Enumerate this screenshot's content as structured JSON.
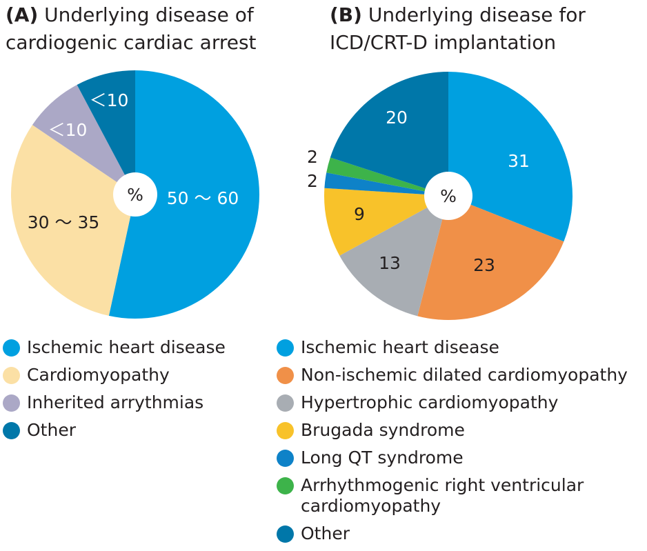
{
  "chart_data": [
    {
      "type": "pie",
      "panel": "(A)",
      "title": "Underlying disease of\ncardiogenic cardiac arrest",
      "center_label": "%",
      "slices": [
        {
          "name": "Ischemic heart disease",
          "label": "50 ～ 60",
          "value": 55,
          "color": "#00a0e0",
          "text_color": "#ffffff"
        },
        {
          "name": "Cardiomyopathy",
          "label": "30 ～ 35",
          "value": 32,
          "color": "#fbe0a5",
          "text_color": "#231f20"
        },
        {
          "name": "Inherited arrythmias",
          "label": "＜10",
          "value": 8,
          "color": "#aba8c6",
          "text_color": "#ffffff"
        },
        {
          "name": "Other",
          "label": "＜10",
          "value": 8,
          "color": "#0077a9",
          "text_color": "#ffffff"
        }
      ]
    },
    {
      "type": "pie",
      "panel": "(B)",
      "title": "Underlying disease for\nICD/CRT-D implantation",
      "center_label": "%",
      "slices": [
        {
          "name": "Ischemic heart disease",
          "label": "31",
          "value": 31,
          "color": "#00a0e0",
          "text_color": "#ffffff"
        },
        {
          "name": "Non-ischemic dilated cardiomyopathy",
          "label": "23",
          "value": 23,
          "color": "#f09048",
          "text_color": "#231f20"
        },
        {
          "name": "Hypertrophic cardiomyopathy",
          "label": "13",
          "value": 13,
          "color": "#a8adb3",
          "text_color": "#231f20"
        },
        {
          "name": "Brugada syndrome",
          "label": "9",
          "value": 9,
          "color": "#f8c22a",
          "text_color": "#231f20"
        },
        {
          "name": "Long QT syndrome",
          "label": "2",
          "value": 2,
          "color": "#0e82c8",
          "text_color": "#231f20"
        },
        {
          "name": "Arrhythmogenic right ventricular\ncardiomyopathy",
          "label": "2",
          "value": 2,
          "color": "#3db34a",
          "text_color": "#231f20"
        },
        {
          "name": "Other",
          "label": "20",
          "value": 20,
          "color": "#0077a9",
          "text_color": "#ffffff"
        }
      ]
    }
  ]
}
